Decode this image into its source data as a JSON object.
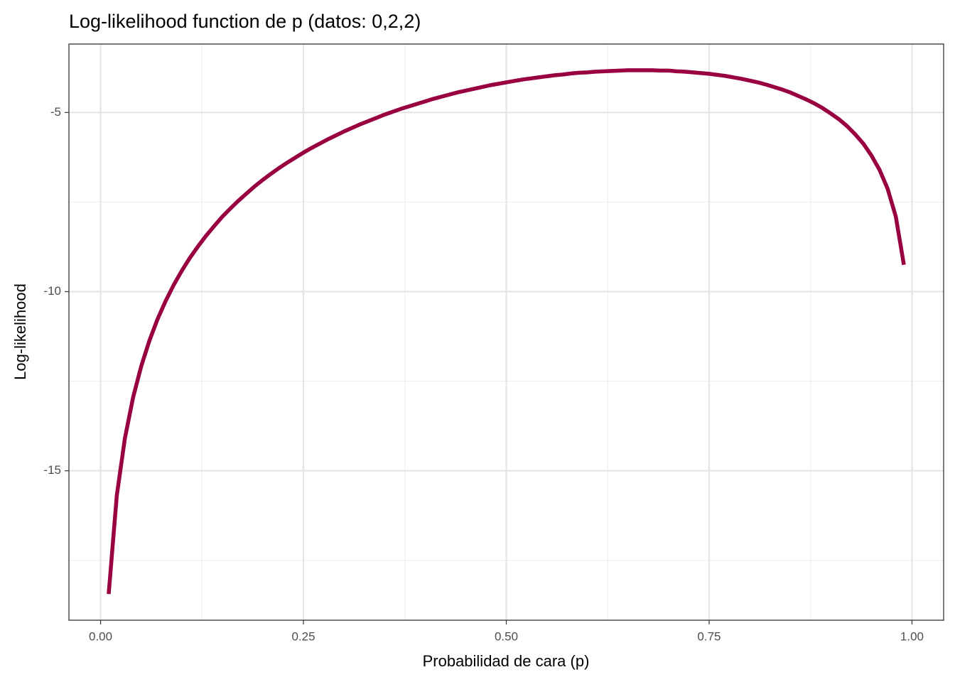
{
  "chart_data": {
    "type": "line",
    "title": "Log-likelihood function de p (datos: 0,2,2)",
    "x_label": "Probabilidad de cara (p)",
    "y_label": "Log-likelihood",
    "x": [
      0.01,
      0.02,
      0.03,
      0.04,
      0.05,
      0.06,
      0.07,
      0.08,
      0.09,
      0.1,
      0.11,
      0.12,
      0.13,
      0.14,
      0.15,
      0.16,
      0.17,
      0.18,
      0.19,
      0.2,
      0.21,
      0.22,
      0.23,
      0.24,
      0.25,
      0.26,
      0.27,
      0.28,
      0.29,
      0.3,
      0.31,
      0.32,
      0.33,
      0.34,
      0.35,
      0.36,
      0.37,
      0.38,
      0.39,
      0.4,
      0.41,
      0.42,
      0.43,
      0.44,
      0.45,
      0.46,
      0.47,
      0.48,
      0.49,
      0.5,
      0.51,
      0.52,
      0.53,
      0.54,
      0.55,
      0.56,
      0.57,
      0.58,
      0.59,
      0.6,
      0.61,
      0.62,
      0.63,
      0.64,
      0.65,
      0.66,
      0.67,
      0.68,
      0.69,
      0.7,
      0.71,
      0.72,
      0.73,
      0.74,
      0.75,
      0.76,
      0.77,
      0.78,
      0.79,
      0.8,
      0.81,
      0.82,
      0.83,
      0.84,
      0.85,
      0.86,
      0.87,
      0.88,
      0.89,
      0.9,
      0.91,
      0.92,
      0.93,
      0.94,
      0.95,
      0.96,
      0.97,
      0.98,
      0.99
    ],
    "series": [
      {
        "color": "#990040",
        "values": [
          -18.44,
          -15.69,
          -14.09,
          -12.96,
          -12.09,
          -11.38,
          -10.78,
          -10.27,
          -9.82,
          -9.42,
          -9.06,
          -8.74,
          -8.44,
          -8.17,
          -7.91,
          -7.68,
          -7.46,
          -7.26,
          -7.06,
          -6.88,
          -6.71,
          -6.55,
          -6.4,
          -6.26,
          -6.12,
          -5.99,
          -5.87,
          -5.75,
          -5.64,
          -5.53,
          -5.43,
          -5.33,
          -5.24,
          -5.15,
          -5.06,
          -4.98,
          -4.9,
          -4.83,
          -4.76,
          -4.69,
          -4.62,
          -4.56,
          -4.5,
          -4.44,
          -4.39,
          -4.34,
          -4.29,
          -4.24,
          -4.2,
          -4.16,
          -4.12,
          -4.08,
          -4.05,
          -4.02,
          -3.99,
          -3.96,
          -3.94,
          -3.91,
          -3.89,
          -3.88,
          -3.86,
          -3.85,
          -3.84,
          -3.83,
          -3.82,
          -3.82,
          -3.82,
          -3.82,
          -3.83,
          -3.83,
          -3.85,
          -3.86,
          -3.88,
          -3.9,
          -3.92,
          -3.95,
          -3.98,
          -4.02,
          -4.06,
          -4.11,
          -4.16,
          -4.22,
          -4.29,
          -4.36,
          -4.44,
          -4.54,
          -4.64,
          -4.75,
          -4.88,
          -5.03,
          -5.19,
          -5.38,
          -5.61,
          -5.87,
          -6.2,
          -6.6,
          -7.13,
          -7.9,
          -9.25
        ]
      }
    ],
    "xlim": [
      -0.039,
      1.039
    ],
    "ylim": [
      -19.17,
      -3.09
    ],
    "xticks": [
      {
        "value": 0,
        "label": "0.00"
      },
      {
        "value": 0.25,
        "label": "0.25"
      },
      {
        "value": 0.5,
        "label": "0.50"
      },
      {
        "value": 0.75,
        "label": "0.75"
      },
      {
        "value": 1,
        "label": "1.00"
      }
    ],
    "yticks": [
      -15,
      -10,
      -5
    ],
    "x_minor_ticks": [
      0.125,
      0.375,
      0.625,
      0.875
    ],
    "y_minor_ticks": [
      -17.5,
      -12.5,
      -7.5
    ],
    "grid": true
  }
}
